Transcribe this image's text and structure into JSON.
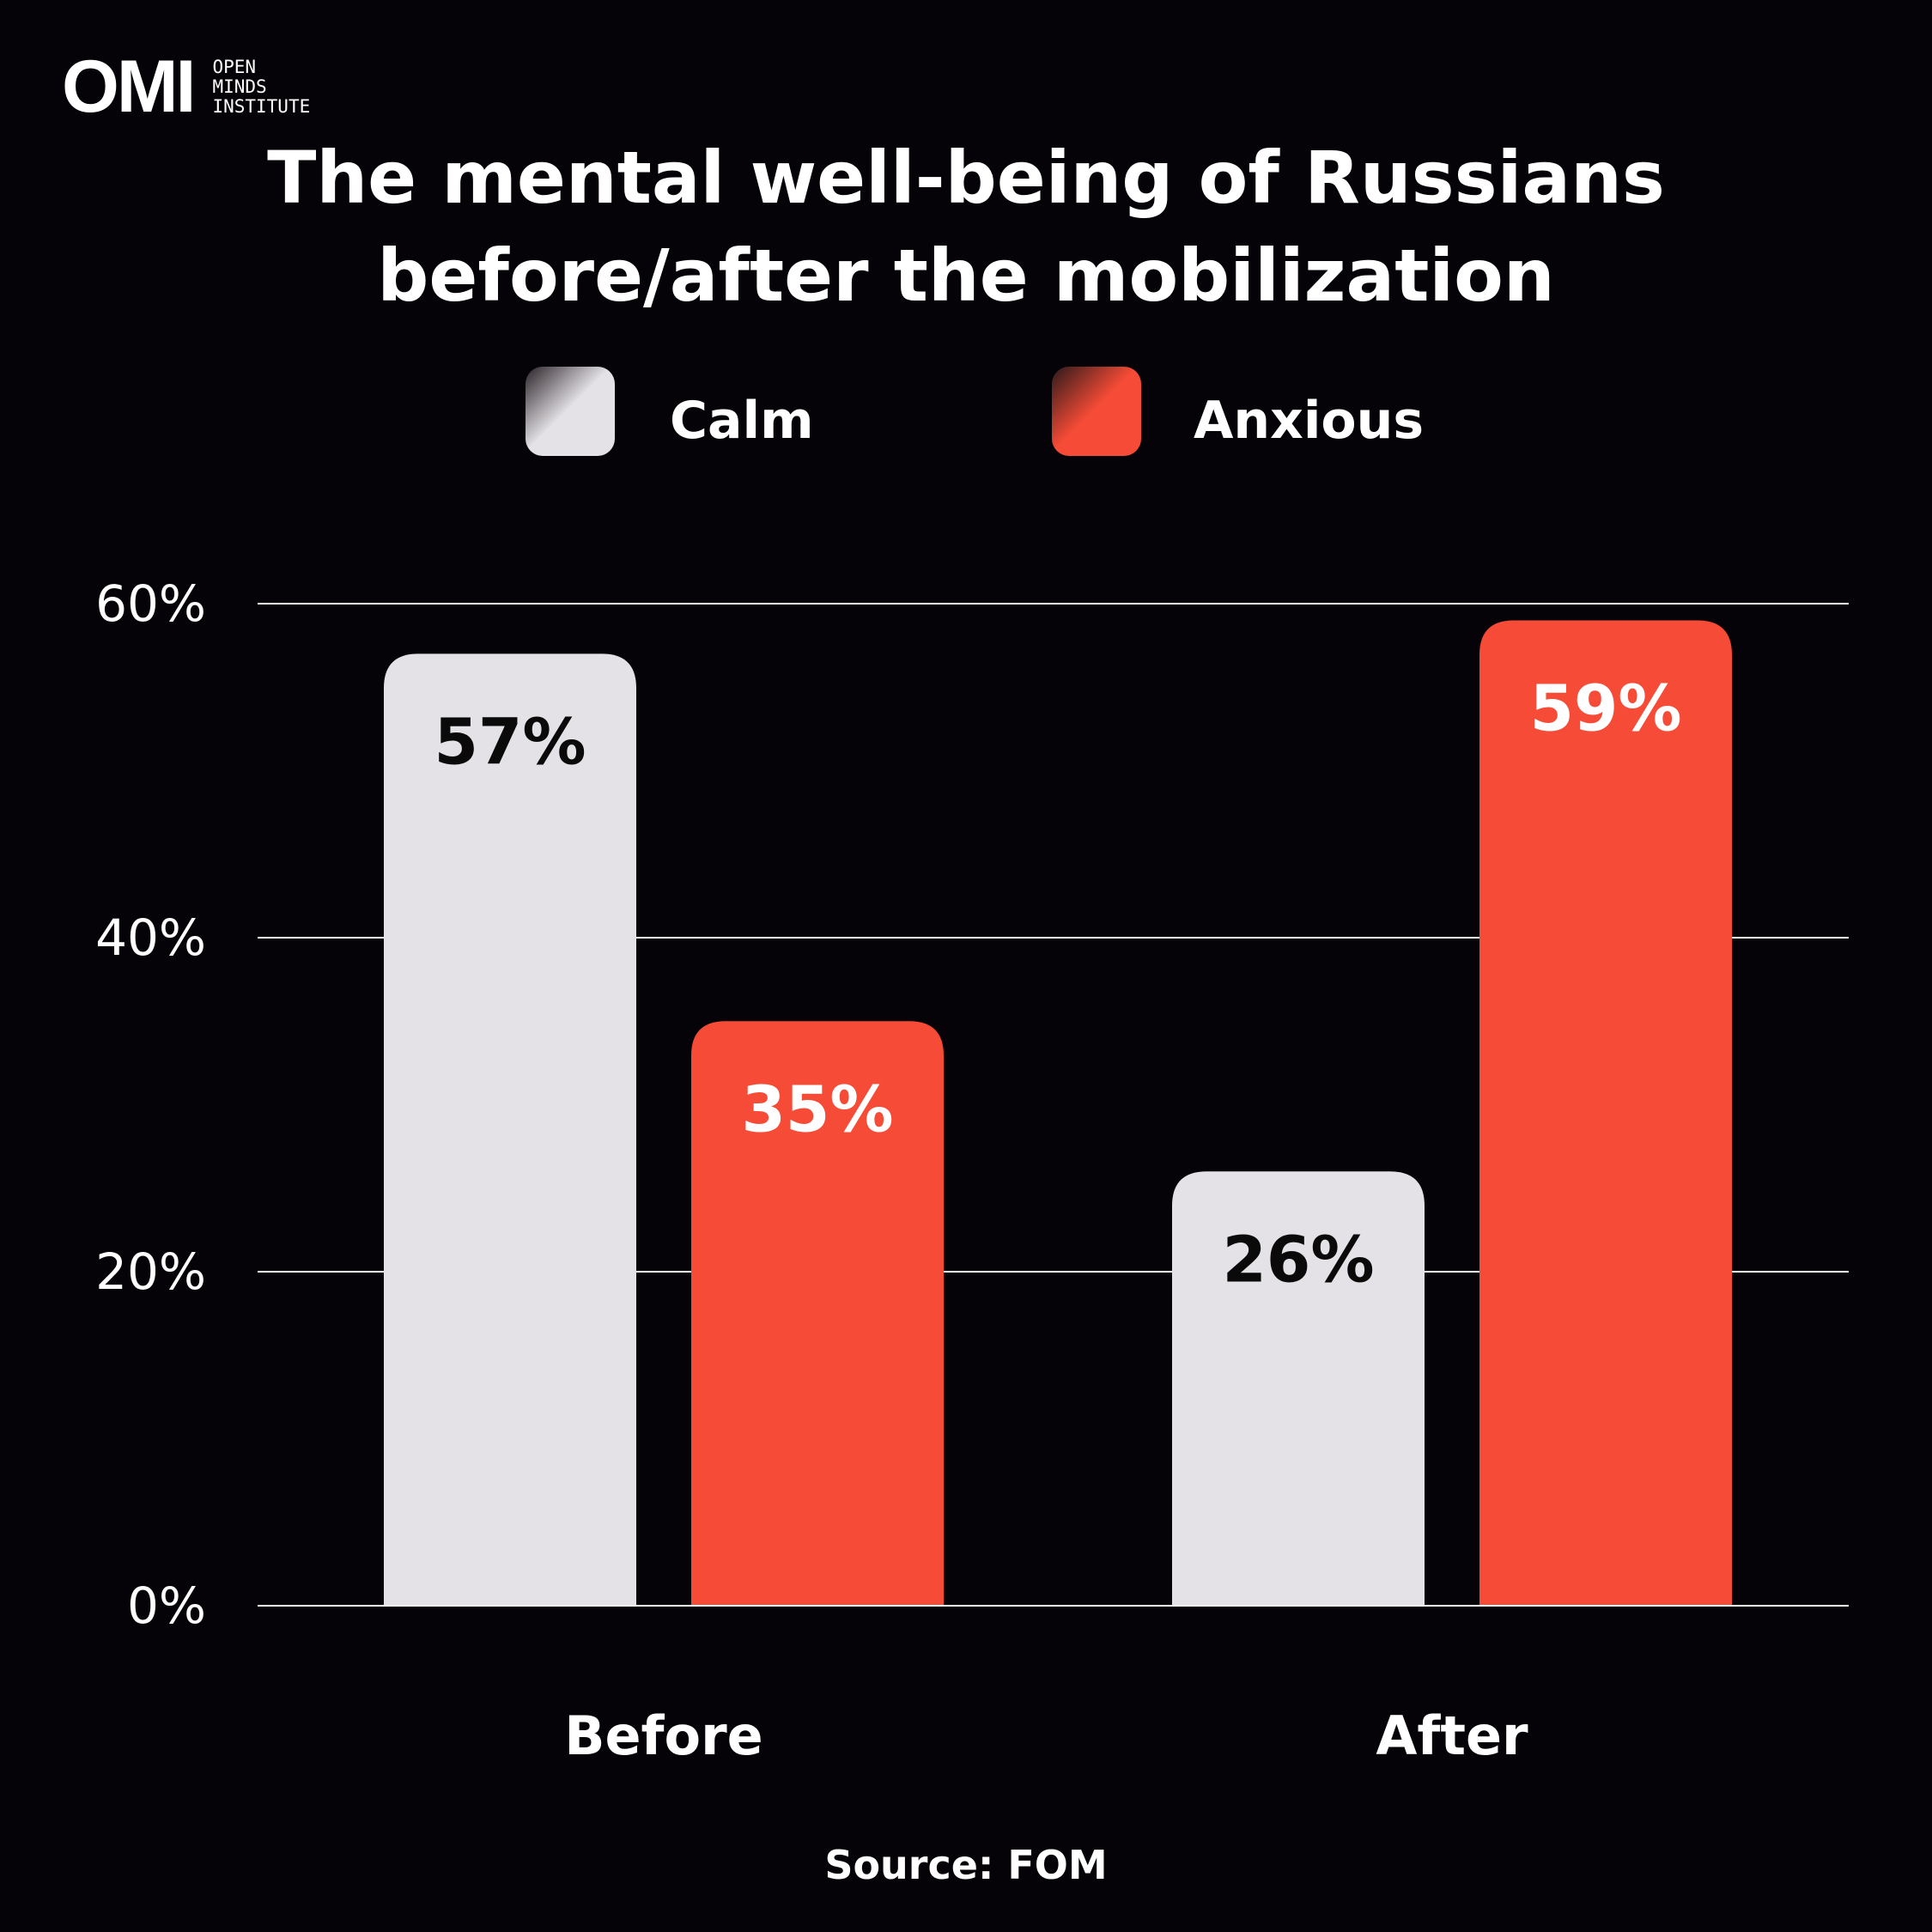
{
  "brand": {
    "mark": "OMI",
    "lines": [
      "OPEN",
      "MINDS",
      "INSTITUTE"
    ]
  },
  "colors": {
    "background": "#050307",
    "calm": "#e4e2e6",
    "anxious": "#f64b36",
    "grid": "#ffffff"
  },
  "source": "Source: FOM",
  "chart_data": {
    "type": "bar",
    "title_lines": [
      "The mental well-being of Russians",
      "before/after the mobilization"
    ],
    "categories": [
      "Before",
      "After"
    ],
    "series": [
      {
        "name": "Calm",
        "values": [
          57,
          26
        ],
        "labels": [
          "57%",
          "26%"
        ],
        "color": "#e4e2e6",
        "label_color": "#0a0a0a"
      },
      {
        "name": "Anxious",
        "values": [
          35,
          59
        ],
        "labels": [
          "35%",
          "59%"
        ],
        "color": "#f64b36",
        "label_color": "#ffffff"
      }
    ],
    "ylim": [
      0,
      60
    ],
    "yticks": [
      0,
      20,
      40,
      60
    ],
    "ytick_labels": [
      "0%",
      "20%",
      "40%",
      "60%"
    ],
    "grid": true,
    "legend_position": "top-center"
  }
}
